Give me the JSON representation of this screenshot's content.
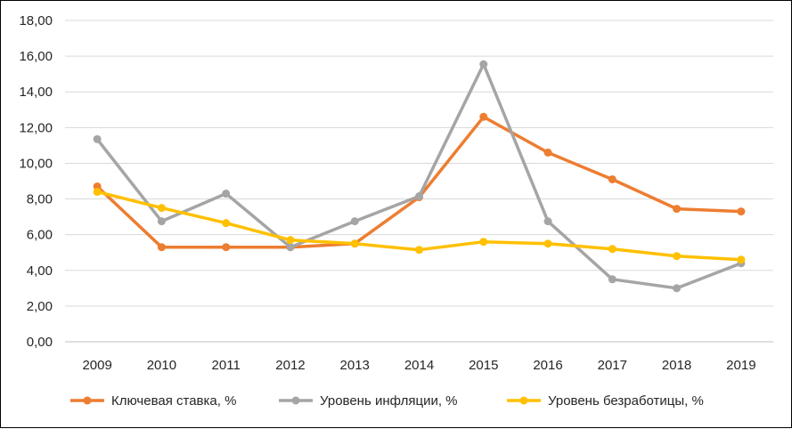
{
  "chart_data": {
    "type": "line",
    "x": [
      "2009",
      "2010",
      "2011",
      "2012",
      "2013",
      "2014",
      "2015",
      "2016",
      "2017",
      "2018",
      "2019"
    ],
    "yticks": [
      "0,00",
      "2,00",
      "4,00",
      "6,00",
      "8,00",
      "10,00",
      "12,00",
      "14,00",
      "16,00",
      "18,00"
    ],
    "ylim": [
      0,
      18
    ],
    "grid": true,
    "legend_position": "bottom",
    "series": [
      {
        "name": "Ключевая ставка, %",
        "color": "#ED7D31",
        "values": [
          8.7,
          5.3,
          5.3,
          5.3,
          5.5,
          8.1,
          12.6,
          10.6,
          9.1,
          7.45,
          7.3
        ]
      },
      {
        "name": "Уровень инфляции, %",
        "color": "#A5A5A5",
        "values": [
          11.35,
          6.75,
          8.3,
          5.3,
          6.75,
          8.15,
          15.55,
          6.75,
          3.5,
          3.0,
          4.4
        ]
      },
      {
        "name": "Уровень безработицы, %",
        "color": "#FFC000",
        "values": [
          8.4,
          7.5,
          6.65,
          5.7,
          5.5,
          5.15,
          5.6,
          5.5,
          5.2,
          4.8,
          4.6
        ]
      }
    ]
  }
}
